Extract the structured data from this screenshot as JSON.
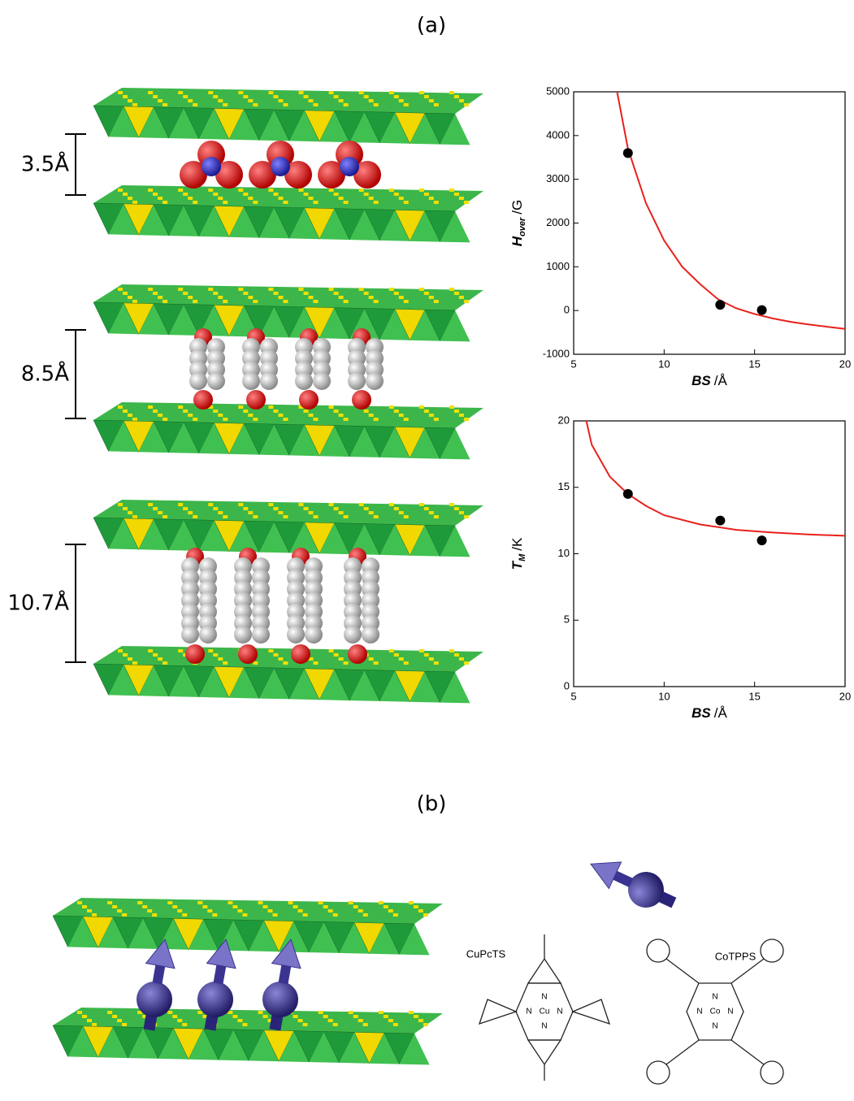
{
  "panel_labels": [
    "(a)",
    "(b)"
  ],
  "spacings": [
    "3.5Å",
    "8.5Å",
    "10.7Å"
  ],
  "molecules": [
    {
      "name": "CuPcTS",
      "metal": "Cu",
      "donor_atom": "N"
    },
    {
      "name": "CoTPPS",
      "metal": "Co",
      "donor_atom": "N"
    }
  ],
  "chart_data": [
    {
      "type": "scatter",
      "xlim": [
        5,
        20
      ],
      "ylim": [
        -1000,
        5000
      ],
      "xticks": [
        5,
        10,
        15,
        20
      ],
      "yticks": [
        -1000,
        0,
        1000,
        2000,
        3000,
        4000,
        5000
      ],
      "grid": false,
      "x_label": {
        "symbol": "BS",
        "unit": "/Å"
      },
      "y_label": {
        "symbol": "H",
        "subscript": "over",
        "unit": "/G"
      },
      "series": [
        {
          "style": "line",
          "color": "#e8211c",
          "x": [
            7.4,
            8,
            9,
            10,
            11,
            12,
            13,
            14,
            15,
            16,
            17,
            18,
            19,
            20
          ],
          "values": [
            5000,
            3700,
            2450,
            1600,
            1000,
            600,
            250,
            50,
            -80,
            -180,
            -260,
            -320,
            -370,
            -420
          ]
        },
        {
          "style": "marker",
          "color": "#000000",
          "x": [
            8,
            13.1,
            15.4
          ],
          "values": [
            3600,
            130,
            10
          ]
        }
      ]
    },
    {
      "type": "scatter",
      "xlim": [
        5,
        20
      ],
      "ylim": [
        0,
        20
      ],
      "xticks": [
        5,
        10,
        15,
        20
      ],
      "yticks": [
        0,
        5,
        10,
        15,
        20
      ],
      "grid": false,
      "x_label": {
        "symbol": "BS",
        "unit": "/Å"
      },
      "y_label": {
        "symbol": "T",
        "subscript": "M",
        "unit": "/K"
      },
      "series": [
        {
          "style": "line",
          "color": "#e8211c",
          "x": [
            5.7,
            6,
            7,
            8,
            9,
            10,
            12,
            14,
            16,
            18,
            20
          ],
          "values": [
            20,
            18.2,
            15.8,
            14.5,
            13.6,
            12.9,
            12.2,
            11.8,
            11.6,
            11.45,
            11.35
          ]
        },
        {
          "style": "marker",
          "color": "#000000",
          "x": [
            8,
            13.1,
            15.4
          ],
          "values": [
            14.5,
            12.5,
            11
          ]
        }
      ]
    }
  ]
}
